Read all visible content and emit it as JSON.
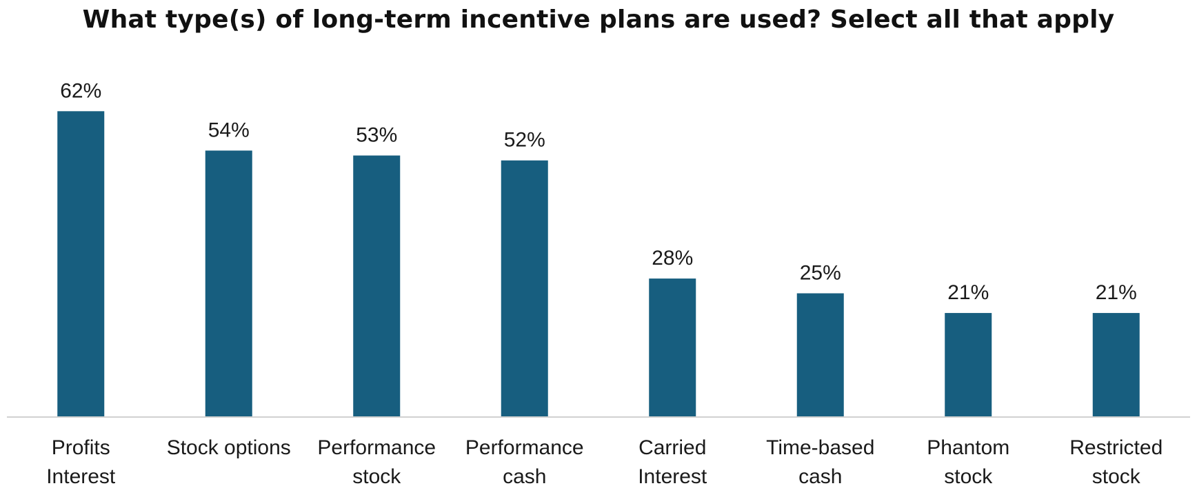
{
  "chart_data": {
    "type": "bar",
    "title": "What type(s) of long-term incentive plans are used? Select all that apply",
    "categories": [
      [
        "Profits",
        "Interest"
      ],
      [
        "Stock options"
      ],
      [
        "Performance",
        "stock"
      ],
      [
        "Performance",
        "cash"
      ],
      [
        "Carried",
        "Interest"
      ],
      [
        "Time-based",
        "cash"
      ],
      [
        "Phantom",
        "stock"
      ],
      [
        "Restricted",
        "stock"
      ]
    ],
    "values": [
      62,
      54,
      53,
      52,
      28,
      25,
      21,
      21
    ],
    "value_labels": [
      "62%",
      "54%",
      "53%",
      "52%",
      "28%",
      "25%",
      "21%",
      "21%"
    ],
    "xlabel": "",
    "ylabel": "",
    "grid": false,
    "legend": "none",
    "bar_color": "#175E7F"
  }
}
